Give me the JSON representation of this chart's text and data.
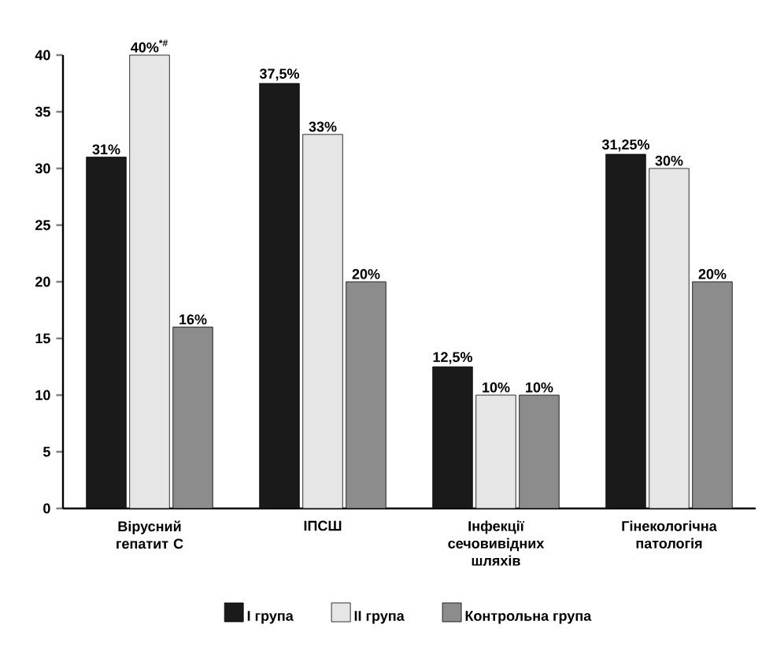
{
  "chart_data": {
    "type": "bar",
    "categories": [
      "Вірусний гепатит С",
      "ІПСШ",
      "Інфекції сечовивідних шляхів",
      "Гінекологічна патологія"
    ],
    "series": [
      {
        "name": "І група",
        "color": "#1a1a1a",
        "values": [
          31,
          37.5,
          12.5,
          31.25
        ],
        "value_labels": [
          "31%",
          "37,5%",
          "12,5%",
          "31,25%"
        ]
      },
      {
        "name": "ІІ група",
        "color": "#e6e6e6",
        "values": [
          40,
          33,
          10,
          30
        ],
        "value_labels": [
          "40%$^{*#}$",
          "33%",
          "10%",
          "30%"
        ]
      },
      {
        "name": "Контрольна група",
        "color": "#8c8c8c",
        "values": [
          16,
          20,
          10,
          20
        ],
        "value_labels": [
          "16%",
          "20%",
          "10%",
          "20%"
        ]
      }
    ],
    "ylim": [
      0,
      40
    ],
    "yticks": [
      0,
      5,
      10,
      15,
      20,
      25,
      30,
      35,
      40
    ],
    "legend": "bottom"
  }
}
